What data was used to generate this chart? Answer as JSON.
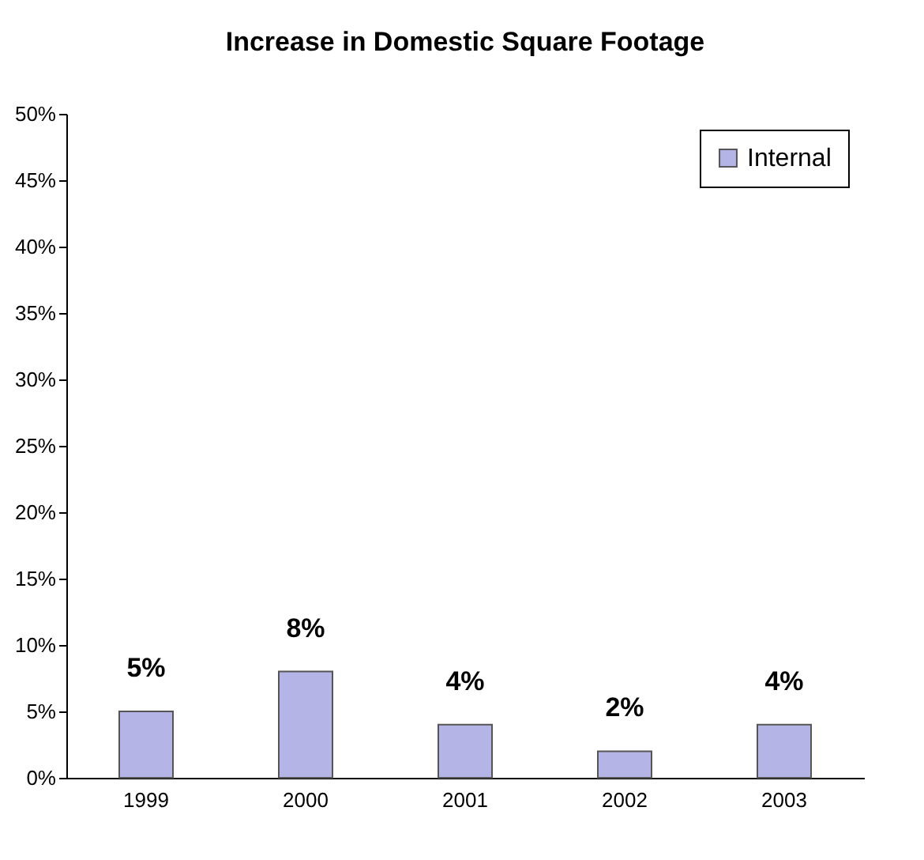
{
  "chart_data": {
    "type": "bar",
    "title": "Increase in Domestic Square Footage",
    "categories": [
      "1999",
      "2000",
      "2001",
      "2002",
      "2003"
    ],
    "series": [
      {
        "name": "Internal",
        "color": "#b4b4e6",
        "values": [
          5,
          8,
          4,
          2,
          4
        ]
      }
    ],
    "value_labels": [
      "5%",
      "8%",
      "4%",
      "2%",
      "4%"
    ],
    "ylim": [
      0,
      50
    ],
    "yticks": [
      {
        "value": 0,
        "label": "0%"
      },
      {
        "value": 5,
        "label": "5%"
      },
      {
        "value": 10,
        "label": "10%"
      },
      {
        "value": 15,
        "label": "15%"
      },
      {
        "value": 20,
        "label": "20%"
      },
      {
        "value": 25,
        "label": "25%"
      },
      {
        "value": 30,
        "label": "30%"
      },
      {
        "value": 35,
        "label": "35%"
      },
      {
        "value": 40,
        "label": "40%"
      },
      {
        "value": 45,
        "label": "45%"
      },
      {
        "value": 50,
        "label": "50%"
      }
    ],
    "grid": false,
    "legend": "top right"
  }
}
